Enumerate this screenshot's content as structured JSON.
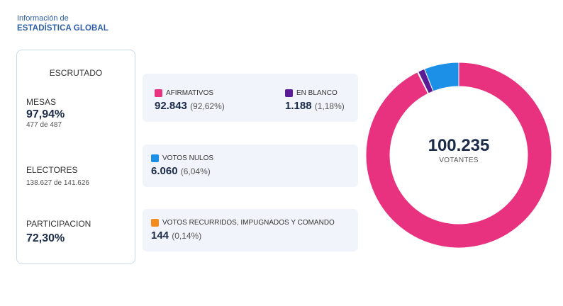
{
  "header": {
    "sub": "Información de",
    "main": "ESTADÍSTICA GLOBAL"
  },
  "summary": {
    "title": "ESCRUTADO",
    "mesas": {
      "label": "MESAS",
      "value": "97,94%",
      "detail": "477 de 487"
    },
    "electores": {
      "label": "ELECTORES",
      "detail": "138.627 de 141.626"
    },
    "participacion": {
      "label": "PARTICIPACION",
      "value": "72,30%"
    }
  },
  "results": {
    "afirmativos": {
      "label": "AFIRMATIVOS",
      "value": "92.843",
      "pct": "(92,62%)",
      "color": "#e8317f"
    },
    "en_blanco": {
      "label": "EN BLANCO",
      "value": "1.188",
      "pct": "(1,18%)",
      "color": "#5b1a96"
    },
    "nulos": {
      "label": "VOTOS NULOS",
      "value": "6.060",
      "pct": "(6,04%)",
      "color": "#1c8fe6"
    },
    "recurridos": {
      "label": "VOTOS RECURRIDOS, IMPUGNADOS Y COMANDO",
      "value": "144",
      "pct": "(0,14%)",
      "color": "#f28c1f"
    }
  },
  "donut": {
    "total": "100.235",
    "caption": "VOTANTES",
    "segments": [
      {
        "name": "afirmativos",
        "value": 92.62,
        "color": "#e8317f"
      },
      {
        "name": "recurridos",
        "value": 0.14,
        "color": "#f28c1f"
      },
      {
        "name": "en_blanco",
        "value": 1.18,
        "color": "#5b1a96"
      },
      {
        "name": "nulos",
        "value": 6.04,
        "color": "#1c8fe6"
      }
    ]
  }
}
